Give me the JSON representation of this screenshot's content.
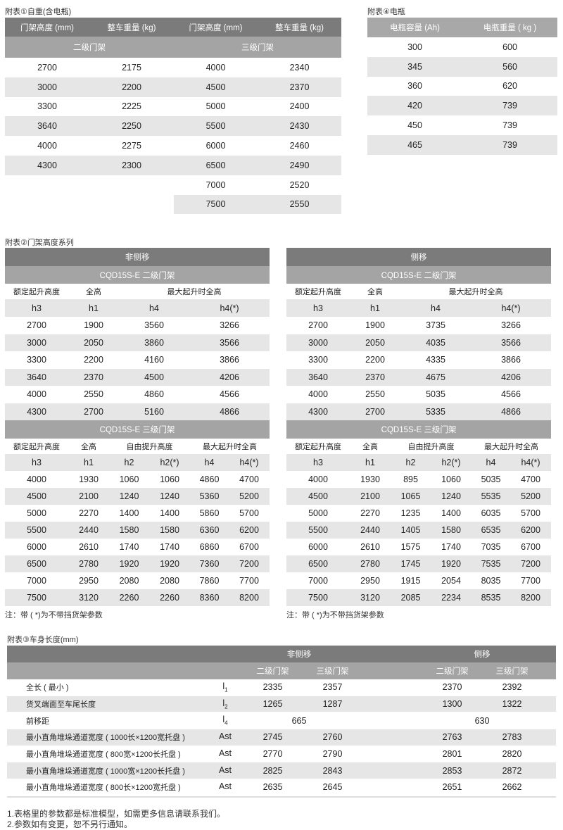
{
  "table1": {
    "title": "附表①自重(含电瓶)",
    "headers": [
      "门架高度 (mm)",
      "整车重量 (kg)",
      "门架高度 (mm)",
      "整车重量 (kg)"
    ],
    "groups": [
      "二级门架",
      "三级门架"
    ],
    "left_rows": [
      [
        "2700",
        "2175"
      ],
      [
        "3000",
        "2200"
      ],
      [
        "3300",
        "2225"
      ],
      [
        "3640",
        "2250"
      ],
      [
        "4000",
        "2275"
      ],
      [
        "4300",
        "2300"
      ]
    ],
    "right_rows": [
      [
        "4000",
        "2340"
      ],
      [
        "4500",
        "2370"
      ],
      [
        "5000",
        "2400"
      ],
      [
        "5500",
        "2430"
      ],
      [
        "6000",
        "2460"
      ],
      [
        "6500",
        "2490"
      ],
      [
        "7000",
        "2520"
      ],
      [
        "7500",
        "2550"
      ]
    ]
  },
  "table4": {
    "title": "附表④电瓶",
    "headers": [
      "电瓶容量 (Ah)",
      "电瓶重量 ( kg )"
    ],
    "rows": [
      [
        "300",
        "600"
      ],
      [
        "345",
        "560"
      ],
      [
        "360",
        "620"
      ],
      [
        "420",
        "739"
      ],
      [
        "450",
        "739"
      ],
      [
        "465",
        "739"
      ]
    ]
  },
  "table2": {
    "title": "附表②门架高度系列",
    "panels": [
      {
        "title": "非侧移",
        "sec1": {
          "title": "CQD15S-E   二级门架",
          "labels": [
            "额定起升高度",
            "全高",
            "最大起升时全高"
          ],
          "symbols": [
            "h3",
            "h1",
            "h4",
            "h4(*)"
          ],
          "rows": [
            [
              "2700",
              "1900",
              "3560",
              "3266"
            ],
            [
              "3000",
              "2050",
              "3860",
              "3566"
            ],
            [
              "3300",
              "2200",
              "4160",
              "3866"
            ],
            [
              "3640",
              "2370",
              "4500",
              "4206"
            ],
            [
              "4000",
              "2550",
              "4860",
              "4566"
            ],
            [
              "4300",
              "2700",
              "5160",
              "4866"
            ]
          ]
        },
        "sec2": {
          "title": "CQD15S-E   三级门架",
          "labels": [
            "额定起升高度",
            "全高",
            "自由提升高度",
            "最大起升时全高"
          ],
          "symbols": [
            "h3",
            "h1",
            "h2",
            "h2(*)",
            "h4",
            "h4(*)"
          ],
          "rows": [
            [
              "4000",
              "1930",
              "1060",
              "1060",
              "4860",
              "4700"
            ],
            [
              "4500",
              "2100",
              "1240",
              "1240",
              "5360",
              "5200"
            ],
            [
              "5000",
              "2270",
              "1400",
              "1400",
              "5860",
              "5700"
            ],
            [
              "5500",
              "2440",
              "1580",
              "1580",
              "6360",
              "6200"
            ],
            [
              "6000",
              "2610",
              "1740",
              "1740",
              "6860",
              "6700"
            ],
            [
              "6500",
              "2780",
              "1920",
              "1920",
              "7360",
              "7200"
            ],
            [
              "7000",
              "2950",
              "2080",
              "2080",
              "7860",
              "7700"
            ],
            [
              "7500",
              "3120",
              "2260",
              "2260",
              "8360",
              "8200"
            ]
          ]
        },
        "note": "注：带 ( *)为不带挡货架参数"
      },
      {
        "title": "侧移",
        "sec1": {
          "title": "CQD15S-E   二级门架",
          "labels": [
            "额定起升高度",
            "全高",
            "最大起升时全高"
          ],
          "symbols": [
            "h3",
            "h1",
            "h4",
            "h4(*)"
          ],
          "rows": [
            [
              "2700",
              "1900",
              "3735",
              "3266"
            ],
            [
              "3000",
              "2050",
              "4035",
              "3566"
            ],
            [
              "3300",
              "2200",
              "4335",
              "3866"
            ],
            [
              "3640",
              "2370",
              "4675",
              "4206"
            ],
            [
              "4000",
              "2550",
              "5035",
              "4566"
            ],
            [
              "4300",
              "2700",
              "5335",
              "4866"
            ]
          ]
        },
        "sec2": {
          "title": "CQD15S-E   三级门架",
          "labels": [
            "额定起升高度",
            "全高",
            "自由提升高度",
            "最大起升时全高"
          ],
          "symbols": [
            "h3",
            "h1",
            "h2",
            "h2(*)",
            "h4",
            "h4(*)"
          ],
          "rows": [
            [
              "4000",
              "1930",
              "895",
              "1060",
              "5035",
              "4700"
            ],
            [
              "4500",
              "2100",
              "1065",
              "1240",
              "5535",
              "5200"
            ],
            [
              "5000",
              "2270",
              "1235",
              "1400",
              "6035",
              "5700"
            ],
            [
              "5500",
              "2440",
              "1405",
              "1580",
              "6535",
              "6200"
            ],
            [
              "6000",
              "2610",
              "1575",
              "1740",
              "7035",
              "6700"
            ],
            [
              "6500",
              "2780",
              "1745",
              "1920",
              "7535",
              "7200"
            ],
            [
              "7000",
              "2950",
              "1915",
              "2054",
              "8035",
              "7700"
            ],
            [
              "7500",
              "3120",
              "2085",
              "2234",
              "8535",
              "8200"
            ]
          ]
        },
        "note": "注：带 ( *)为不带挡货架参数"
      }
    ]
  },
  "table3": {
    "title": "附表③车身长度(mm)",
    "groups": [
      "非侧移",
      "侧移"
    ],
    "subheaders": [
      "二级门架",
      "三级门架",
      "二级门架",
      "三级门架"
    ],
    "rows": [
      {
        "label": "全长 ( 最小 )",
        "sym": "l",
        "sub": "1",
        "values": [
          "2335",
          "2357",
          "2370",
          "2392"
        ]
      },
      {
        "label": "货叉端面至车尾长度",
        "sym": "l",
        "sub": "2",
        "values": [
          "1265",
          "1287",
          "1300",
          "1322"
        ]
      },
      {
        "label": "前移距",
        "sym": "l",
        "sub": "4",
        "merged": [
          "665",
          "630"
        ]
      },
      {
        "label": "最小直角堆垛通道宽度 ( 1000长×1200宽托盘 )",
        "sym": "Ast",
        "sub": "",
        "values": [
          "2745",
          "2760",
          "2763",
          "2783"
        ]
      },
      {
        "label": "最小直角堆垛通道宽度 ( 800宽×1200长托盘 )",
        "sym": "Ast",
        "sub": "",
        "values": [
          "2770",
          "2790",
          "2801",
          "2820"
        ]
      },
      {
        "label": "最小直角堆垛通道宽度 ( 1000宽×1200长托盘 )",
        "sym": "Ast",
        "sub": "",
        "values": [
          "2825",
          "2843",
          "2853",
          "2872"
        ]
      },
      {
        "label": "最小直角堆垛通道宽度 ( 800长×1200宽托盘 )",
        "sym": "Ast",
        "sub": "",
        "values": [
          "2635",
          "2645",
          "2651",
          "2662"
        ]
      }
    ],
    "notes": [
      "1.表格里的参数都是标准模型，如需更多信息请联系我们。",
      "2.参数如有变更，恕不另行通知。"
    ]
  }
}
